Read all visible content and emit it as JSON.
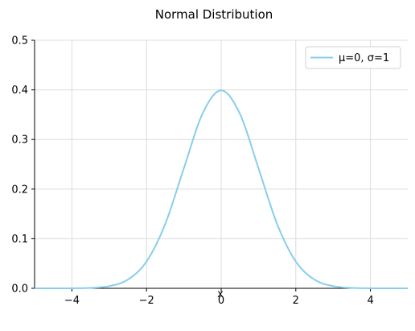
{
  "chart_data": {
    "type": "line",
    "title": "Normal Distribution",
    "xlabel": "x",
    "ylabel": "",
    "xlim": [
      -5,
      5
    ],
    "ylim": [
      0,
      0.5
    ],
    "xticks": [
      -4,
      -2,
      0,
      2,
      4
    ],
    "xtick_labels": [
      "−4",
      "−2",
      "0",
      "2",
      "4"
    ],
    "yticks": [
      0.0,
      0.1,
      0.2,
      0.3,
      0.4,
      0.5
    ],
    "ytick_labels": [
      "0.0",
      "0.1",
      "0.2",
      "0.3",
      "0.4",
      "0.5"
    ],
    "grid": true,
    "legend_position": "top-right",
    "series": [
      {
        "name": "μ=0, σ=1",
        "color": "#87ceeb",
        "x": [
          -5,
          -4.5,
          -4,
          -3.5,
          -3,
          -2.5,
          -2,
          -1.5,
          -1,
          -0.5,
          0,
          0.5,
          1,
          1.5,
          2,
          2.5,
          3,
          3.5,
          4,
          4.5,
          5
        ],
        "y": [
          0.0,
          0.0,
          0.0001,
          0.0009,
          0.0044,
          0.0175,
          0.054,
          0.1295,
          0.242,
          0.3521,
          0.3989,
          0.3521,
          0.242,
          0.1295,
          0.054,
          0.0175,
          0.0044,
          0.0009,
          0.0001,
          0.0,
          0.0
        ]
      }
    ]
  }
}
